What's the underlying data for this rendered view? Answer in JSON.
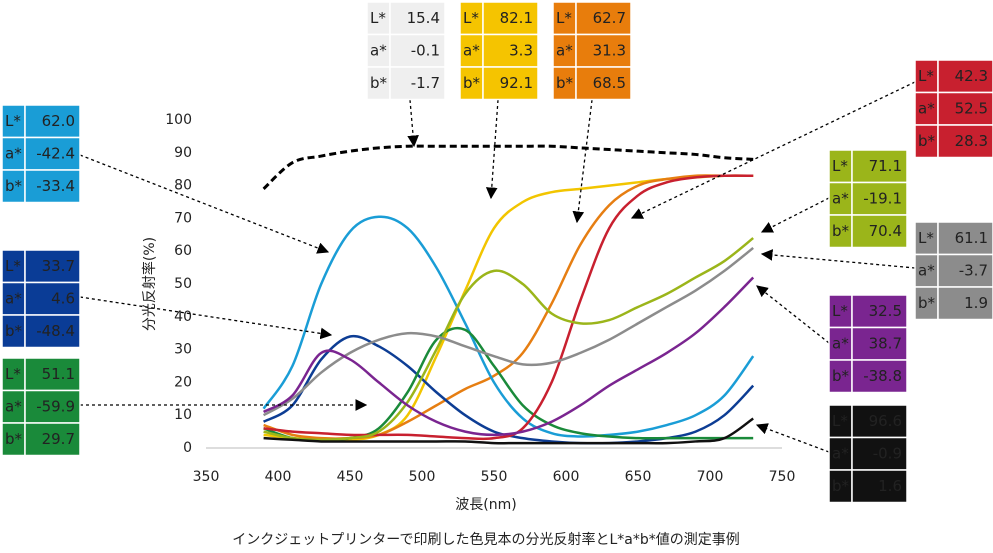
{
  "chart_data": {
    "type": "line",
    "xlabel": "波長(nm)",
    "ylabel": "分光反射率(%)",
    "caption": "インクジェットプリンターで印刷した色見本の分光反射率とL*a*b*値の測定事例",
    "xlim": [
      350,
      750
    ],
    "xticks": [
      350,
      400,
      450,
      500,
      550,
      600,
      650,
      700,
      750
    ],
    "ylim": [
      0,
      100
    ],
    "yticks": [
      0,
      10,
      20,
      30,
      40,
      50,
      60,
      70,
      80,
      90,
      100
    ],
    "lab_names": [
      "L*",
      "a*",
      "b*"
    ],
    "x": [
      390,
      410,
      430,
      450,
      470,
      490,
      510,
      530,
      550,
      570,
      590,
      610,
      630,
      650,
      670,
      690,
      710,
      730
    ],
    "series": [
      {
        "color": "#000000",
        "dashed": true,
        "box_color": "#efefef",
        "lab": [
          15.4,
          -0.1,
          -1.7
        ],
        "values": [
          79,
          87,
          89,
          90.5,
          91.5,
          92,
          92,
          92,
          92,
          92,
          92,
          91.5,
          91,
          90.5,
          90,
          89.5,
          88.5,
          88
        ]
      },
      {
        "color": "#f2c500",
        "box_color": "#f5c400",
        "lab": [
          82.1,
          3.3,
          92.1
        ],
        "values": [
          4,
          3,
          2.5,
          2.5,
          4,
          10,
          28,
          48,
          67,
          75,
          78,
          79,
          80,
          81,
          82,
          82.5,
          83,
          83
        ]
      },
      {
        "color": "#e67e12",
        "box_color": "#e87d0c",
        "lab": [
          62.7,
          31.3,
          68.5
        ],
        "values": [
          7,
          4,
          3,
          3,
          4,
          8,
          13,
          18,
          22,
          29,
          44,
          62,
          74,
          80,
          82,
          83,
          83,
          83
        ]
      },
      {
        "color": "#1a9dd6",
        "box_color": "#1a9dd6",
        "lab": [
          {
            "value": 62,
            "label": "62.0"
          },
          -42.4,
          -33.4
        ],
        "values": [
          12,
          25,
          50,
          66,
          70.5,
          67,
          55,
          38,
          20,
          9,
          4.5,
          3.5,
          4,
          5,
          7,
          10,
          16,
          28
        ]
      },
      {
        "color": "#0d3d94",
        "box_color": "#0a3c96",
        "lab": [
          33.7,
          4.6,
          -48.4
        ],
        "values": [
          8,
          13,
          27,
          34,
          31,
          25,
          17,
          10,
          5,
          3,
          2,
          1.5,
          1.5,
          2,
          3,
          5,
          10,
          19
        ]
      },
      {
        "color": "#1a8a3a",
        "box_color": "#1a8a3a",
        "lab": [
          51.1,
          -59.9,
          29.7
        ],
        "values": [
          6,
          3,
          2.5,
          3,
          6,
          17,
          33,
          36,
          25,
          13,
          7,
          4.5,
          3.5,
          3,
          3,
          3,
          3,
          3
        ]
      },
      {
        "color": "#c8202f",
        "box_color": "#c8202f",
        "lab": [
          42.3,
          52.5,
          28.3
        ],
        "values": [
          6,
          5,
          4.5,
          4,
          4,
          4,
          3.5,
          3,
          3,
          6,
          20,
          45,
          67,
          77,
          81,
          82.5,
          83,
          83
        ]
      },
      {
        "color": "#9bb51a",
        "box_color": "#9bb51a",
        "lab": [
          71.1,
          -19.1,
          70.4
        ],
        "values": [
          5,
          3,
          2.5,
          3,
          5,
          14,
          30,
          47,
          54,
          50,
          41,
          38,
          39,
          43,
          47,
          52,
          57,
          64
        ]
      },
      {
        "color": "#8c8c8c",
        "box_color": "#8c8c8c",
        "lab": [
          61.1,
          -3.7,
          1.9
        ],
        "values": [
          10,
          15,
          23,
          29,
          33,
          35,
          34,
          31,
          28,
          25.5,
          26,
          29,
          33,
          38,
          43,
          48,
          54,
          61
        ]
      },
      {
        "color": "#7a2590",
        "box_color": "#7a2590",
        "lab": [
          32.5,
          38.7,
          -38.8
        ],
        "values": [
          11,
          16,
          29,
          27,
          20,
          13,
          8,
          5,
          4,
          5,
          8,
          13,
          19,
          24,
          29,
          35,
          43,
          52
        ]
      },
      {
        "color": "#111111",
        "box_color": "#111111",
        "lab": [
          96.6,
          -0.9,
          1.6
        ],
        "values": [
          3,
          2.5,
          2,
          2,
          2,
          2,
          2,
          2,
          1.5,
          1.5,
          1.5,
          1.5,
          1.5,
          1.5,
          1.5,
          2,
          3,
          9
        ]
      }
    ]
  }
}
